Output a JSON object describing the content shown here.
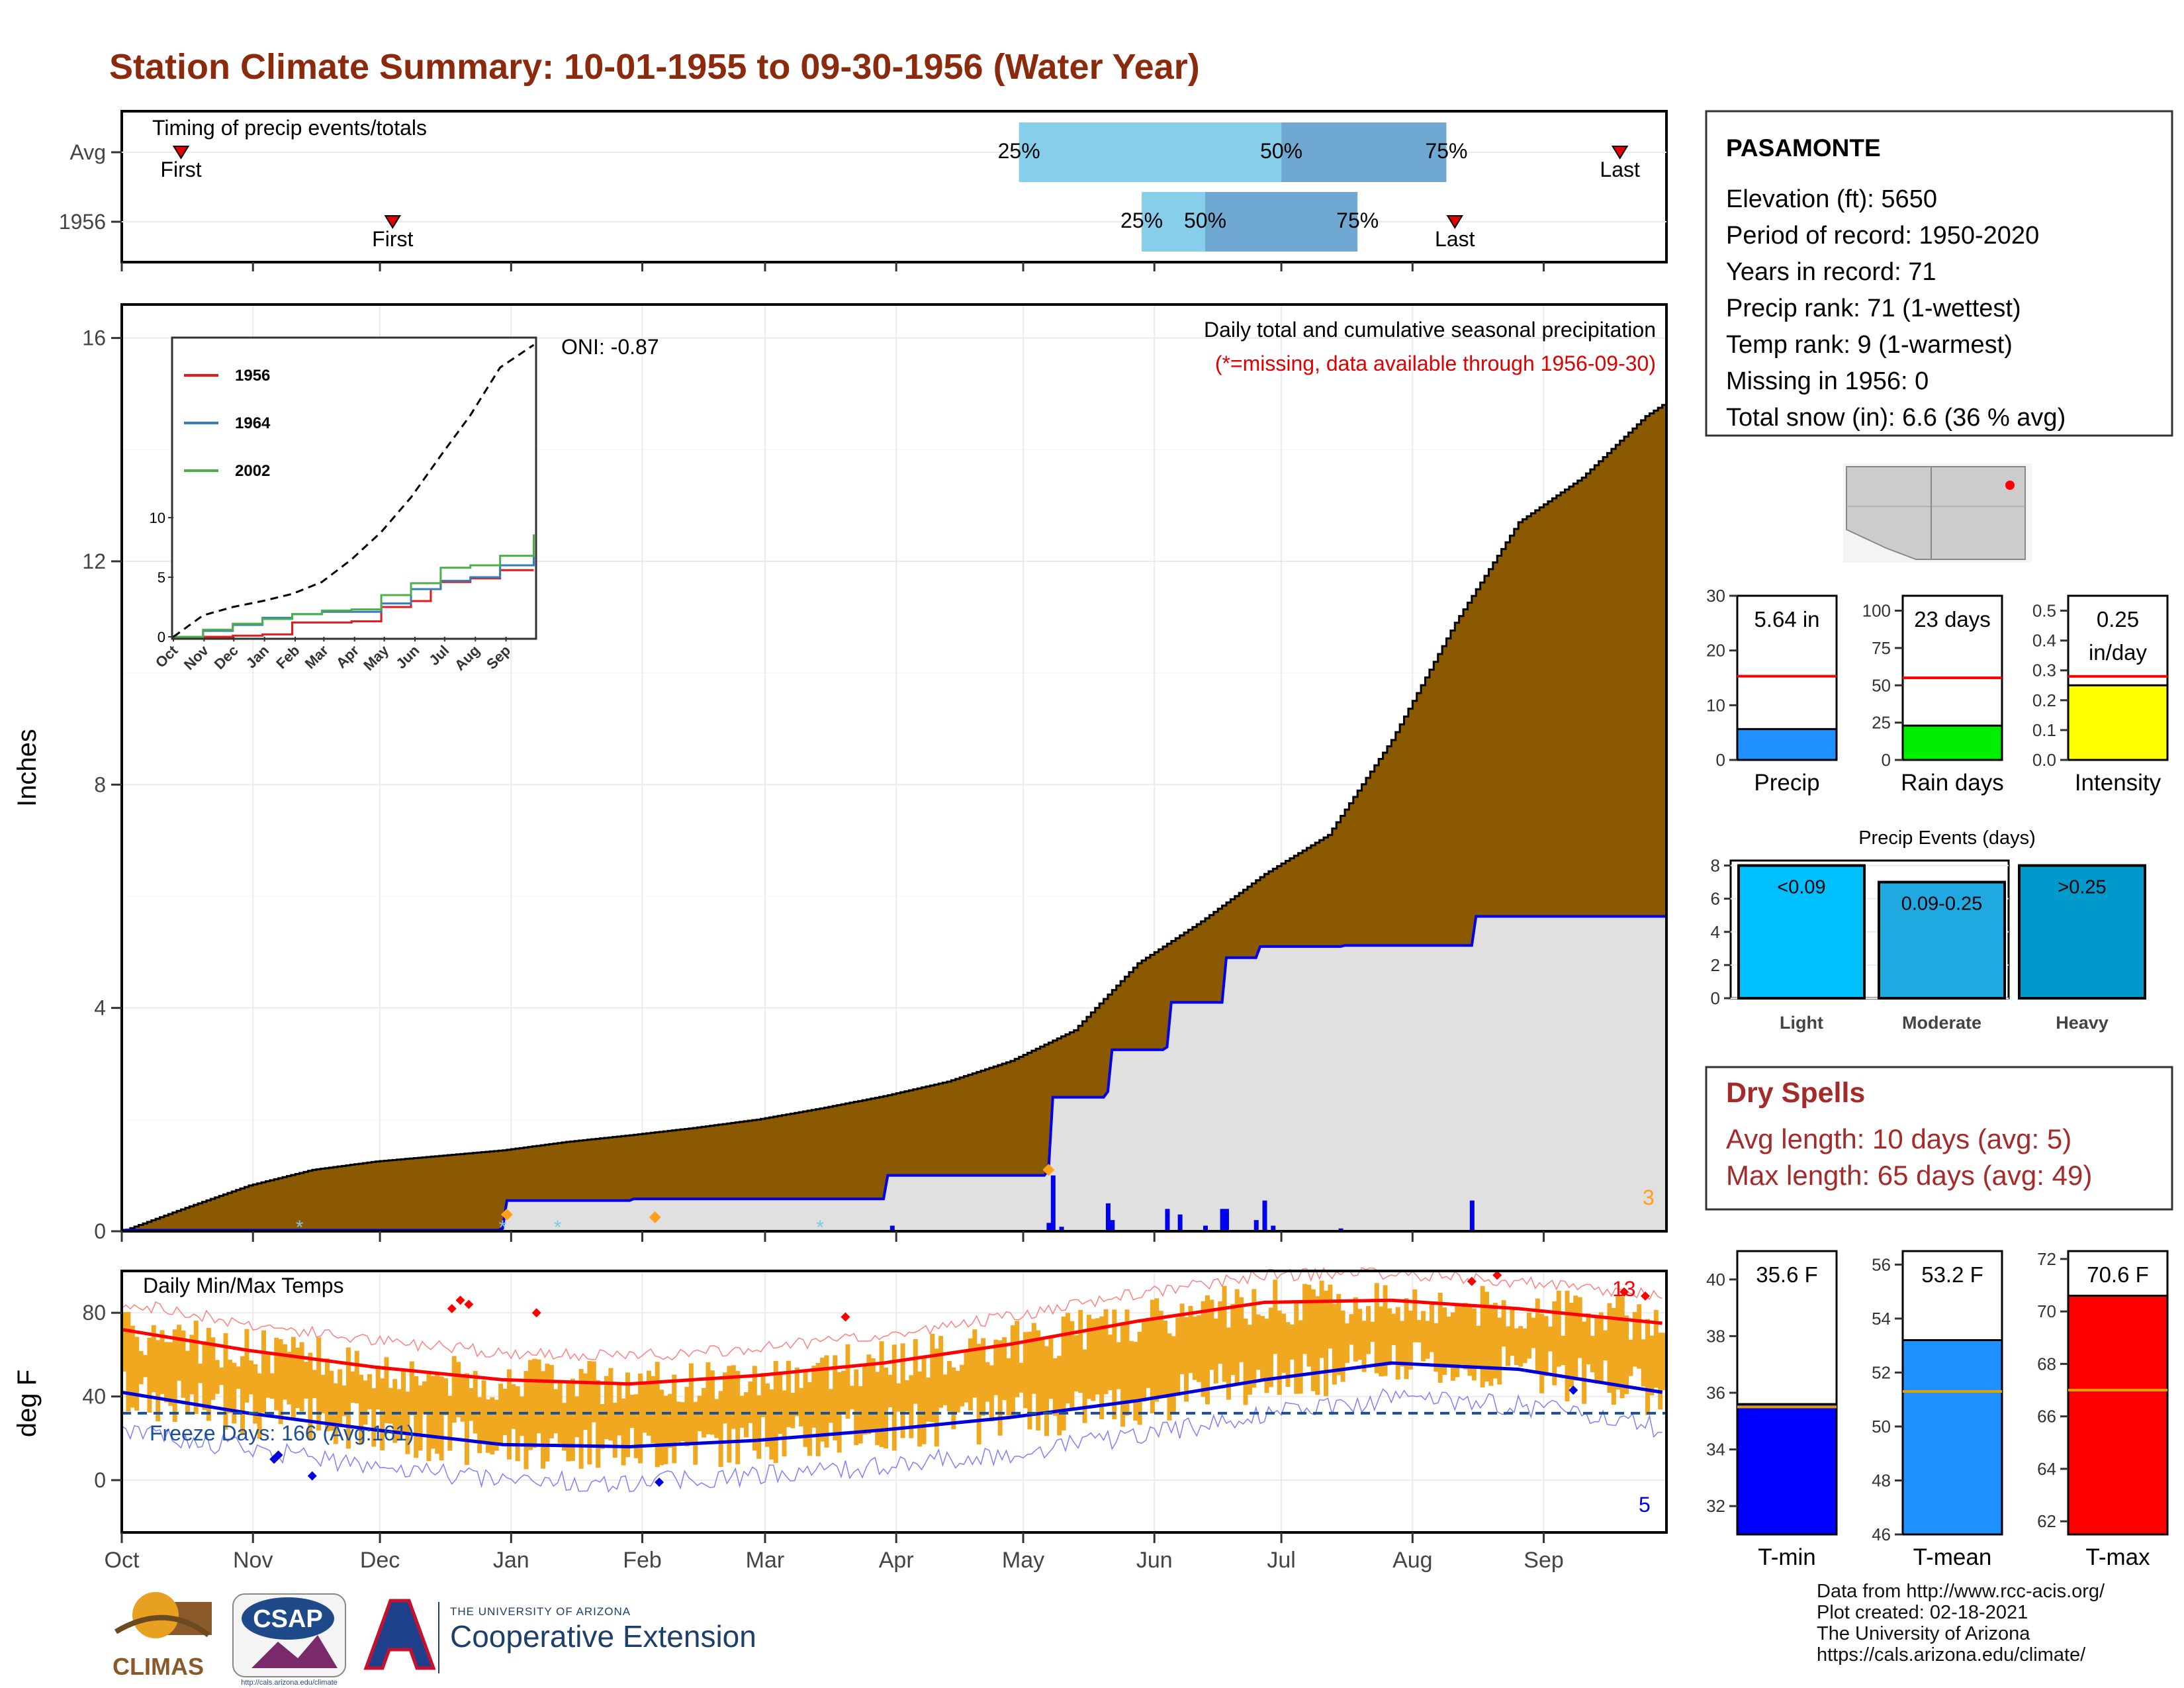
{
  "page": {
    "title": "Station Climate Summary: 10-01-1955 to 09-30-1956 (Water Year)"
  },
  "timing_panel": {
    "title": "Timing of precip events/totals",
    "rows": [
      {
        "label": "Avg",
        "first_label": "First",
        "last_label": "Last",
        "p25_label": "25%",
        "p50_label": "50%",
        "p75_label": "75%",
        "first_day": 14,
        "last_day": 354,
        "p25_day": 212,
        "p50_day": 274,
        "p75_day": 313
      },
      {
        "label": "1956",
        "first_label": "First",
        "last_label": "Last",
        "p25_label": "25%",
        "p50_label": "50%",
        "p75_label": "75%",
        "first_day": 64,
        "last_day": 315,
        "p25_day": 241,
        "p50_day": 256,
        "p75_day": 292
      }
    ],
    "colors": {
      "inner": "#87ceeb",
      "outer": "#6fa8d0",
      "marker": "#e00000"
    }
  },
  "precip_panel": {
    "title": "Daily total and cumulative seasonal precipitation",
    "subtitle": "(*=missing, data available through 1956-09-30)",
    "oni": "ONI: -0.87",
    "ylabel": "Inches",
    "yticks": [
      "0",
      "4",
      "8",
      "12",
      "16"
    ],
    "corner_count": "3",
    "colors": {
      "avg_fill": "#8b5a00",
      "year_fill": "#e0e0e0",
      "year_line": "#0000ee",
      "bars": "#0000ee",
      "count": "#ff9f1a"
    }
  },
  "inset": {
    "yticks": [
      "0",
      "5",
      "10"
    ],
    "xticks": [
      "Oct",
      "Nov",
      "Dec",
      "Jan",
      "Feb",
      "Mar",
      "Apr",
      "May",
      "Jun",
      "Jul",
      "Aug",
      "Sep"
    ],
    "legend": [
      {
        "name": "1956",
        "color": "#e41a1c"
      },
      {
        "name": "1964",
        "color": "#377eb8"
      },
      {
        "name": "2002",
        "color": "#4daf4a"
      }
    ]
  },
  "temp_panel": {
    "title": "Daily Min/Max Temps",
    "ylabel": "deg F",
    "yticks": [
      "0",
      "40",
      "80"
    ],
    "freeze_label": "Freeze Days: 166 (Avg:161)",
    "hot_count": "13",
    "cold_count": "5",
    "colors": {
      "bars": "#f0a820",
      "avg_max": "#ff0000",
      "avg_min": "#0000dd",
      "freeze_line": "#1a4f9a"
    }
  },
  "months_axis": [
    "Oct",
    "Nov",
    "Dec",
    "Jan",
    "Feb",
    "Mar",
    "Apr",
    "May",
    "Jun",
    "Jul",
    "Aug",
    "Sep"
  ],
  "station_info": {
    "name": "PASAMONTE",
    "lines": [
      "Elevation (ft): 5650",
      "Period of record: 1950-2020",
      "Years in record: 71",
      "Precip rank: 71 (1-wettest)",
      "Temp rank: 9 (1-warmest)",
      "Missing in 1956: 0",
      "Total snow (in): 6.6 (36 % avg)"
    ]
  },
  "mini_bars": [
    {
      "label": "Precip",
      "value_label": "5.64 in",
      "value": 5.64,
      "avg": 15.3,
      "ymax": 30,
      "yticks": [
        "0",
        "10",
        "20",
        "30"
      ],
      "tick_values": [
        0,
        10,
        20,
        30
      ],
      "color": "#1e90ff"
    },
    {
      "label": "Rain days",
      "value_label": "23 days",
      "value": 23,
      "avg": 55,
      "ymax": 110,
      "yticks": [
        "0",
        "25",
        "50",
        "75",
        "100"
      ],
      "tick_values": [
        0,
        25,
        50,
        75,
        100
      ],
      "color": "#00ee00"
    },
    {
      "label": "Intensity",
      "value_label": "0.25",
      "value_label2": "in/day",
      "value": 0.25,
      "avg": 0.28,
      "ymax": 0.55,
      "yticks": [
        "0.0",
        "0.1",
        "0.2",
        "0.3",
        "0.4",
        "0.5"
      ],
      "tick_values": [
        0,
        0.1,
        0.2,
        0.3,
        0.4,
        0.5
      ],
      "color": "#ffff00"
    }
  ],
  "precip_events": {
    "title": "Precip Events (days)",
    "yticks": [
      "0",
      "2",
      "4",
      "6",
      "8"
    ],
    "bars": [
      {
        "label": "Light",
        "value_label": "<0.09",
        "value": 8,
        "color": "#00bfff"
      },
      {
        "label": "Moderate",
        "value_label": "0.09-0.25",
        "value": 7,
        "color": "#1fa9e0"
      },
      {
        "label": "Heavy",
        "value_label": ">0.25",
        "value": 8,
        "color": "#0099cc"
      }
    ]
  },
  "dry_spells": {
    "title": "Dry Spells",
    "avg_length": "Avg length: 10 days (avg: 5)",
    "max_length": "Max length: 65 days (avg: 49)"
  },
  "temp_bars": [
    {
      "label": "T-min",
      "value_label": "35.6 F",
      "value": 35.6,
      "avg": 35.5,
      "ymin": 31,
      "ymax": 41,
      "yticks": [
        "32",
        "34",
        "36",
        "38",
        "40"
      ],
      "tick_values": [
        32,
        34,
        36,
        38,
        40
      ],
      "color": "#0000ff"
    },
    {
      "label": "T-mean",
      "value_label": "53.2 F",
      "value": 53.2,
      "avg": 51.3,
      "ymin": 46,
      "ymax": 56.5,
      "yticks": [
        "46",
        "48",
        "50",
        "52",
        "54",
        "56"
      ],
      "tick_values": [
        46,
        48,
        50,
        52,
        54,
        56
      ],
      "color": "#1e90ff"
    },
    {
      "label": "T-max",
      "value_label": "70.6 F",
      "value": 70.6,
      "avg": 67.0,
      "ymin": 61.5,
      "ymax": 72.3,
      "yticks": [
        "62",
        "64",
        "66",
        "68",
        "70",
        "72"
      ],
      "tick_values": [
        62,
        64,
        66,
        68,
        70,
        72
      ],
      "color": "#ff0000"
    }
  ],
  "footer": {
    "lines": [
      "Data from http://www.rcc-acis.org/",
      "Plot created: 02-18-2021",
      "The University of Arizona",
      "https://cals.arizona.edu/climate/"
    ],
    "logos": {
      "climas": "CLIMAS",
      "csap": "CSAP",
      "csap_url": "http://cals.arizona.edu/climate",
      "coop_small": "THE UNIVERSITY OF ARIZONA",
      "coop_big": "Cooperative Extension"
    }
  },
  "chart_data": {
    "type": "area",
    "title": "Daily total and cumulative seasonal precipitation",
    "ylabel": "Inches",
    "ylim": [
      0,
      16
    ],
    "x_unit": "day of water year (0 = Oct 1)",
    "series": [
      {
        "name": "Avg",
        "x": [
          0,
          15,
          30,
          45,
          60,
          75,
          90,
          105,
          120,
          135,
          150,
          165,
          180,
          195,
          210,
          225,
          240,
          255,
          270,
          285,
          300,
          315,
          330,
          345,
          360,
          364
        ],
        "values": [
          0.0,
          0.42,
          0.82,
          1.1,
          1.25,
          1.35,
          1.45,
          1.6,
          1.72,
          1.85,
          2.0,
          2.2,
          2.42,
          2.68,
          3.05,
          3.6,
          4.8,
          5.55,
          6.4,
          7.1,
          8.8,
          10.9,
          12.7,
          13.5,
          14.6,
          14.8
        ]
      },
      {
        "name": "1956",
        "x": [
          0,
          59,
          90,
          91,
          120,
          121,
          180,
          181,
          219,
          220,
          233,
          234,
          247,
          248,
          260,
          261,
          268,
          269,
          288,
          289,
          319,
          320,
          364
        ],
        "values": [
          0.02,
          0.02,
          0.05,
          0.55,
          0.55,
          0.58,
          0.58,
          1.0,
          1.1,
          2.4,
          2.5,
          3.25,
          3.3,
          4.1,
          4.1,
          4.9,
          4.9,
          5.1,
          5.1,
          5.12,
          5.12,
          5.64,
          5.64
        ]
      }
    ],
    "daily_precip": {
      "x": [
        182,
        219,
        220,
        222,
        233,
        234,
        247,
        250,
        256,
        260,
        261,
        268,
        270,
        272,
        288,
        319
      ],
      "values": [
        0.1,
        0.15,
        1.0,
        0.08,
        0.5,
        0.2,
        0.4,
        0.3,
        0.1,
        0.4,
        0.4,
        0.2,
        0.55,
        0.1,
        0.05,
        0.55
      ]
    },
    "inset_series": [
      {
        "name": "1956",
        "x": [
          0,
          60,
          90,
          120,
          180,
          210,
          240,
          260,
          270,
          300,
          330,
          364
        ],
        "values": [
          0,
          0.1,
          0.2,
          1.2,
          1.3,
          2.5,
          3.0,
          4.0,
          4.6,
          4.9,
          5.6,
          5.6
        ]
      },
      {
        "name": "1964",
        "x": [
          0,
          30,
          60,
          90,
          120,
          150,
          180,
          210,
          240,
          270,
          300,
          330,
          364
        ],
        "values": [
          0,
          0.5,
          1.0,
          1.6,
          1.9,
          2.1,
          2.1,
          2.8,
          4.0,
          4.7,
          5.0,
          6.0,
          7.6
        ]
      },
      {
        "name": "2002",
        "x": [
          0,
          30,
          60,
          90,
          120,
          150,
          180,
          210,
          240,
          270,
          300,
          330,
          364
        ],
        "values": [
          0,
          0.6,
          1.1,
          1.5,
          1.9,
          2.2,
          2.3,
          3.5,
          4.5,
          5.8,
          6.0,
          6.8,
          8.6
        ]
      },
      {
        "name": "Max",
        "x": [
          0,
          30,
          60,
          90,
          120,
          150,
          180,
          210,
          240,
          270,
          300,
          330,
          364
        ],
        "values": [
          0,
          1.8,
          2.5,
          3.0,
          3.6,
          4.6,
          6.5,
          8.8,
          11.7,
          15.2,
          18.6,
          22.6,
          24.5
        ]
      }
    ],
    "temps": {
      "ylim": [
        -25,
        100
      ],
      "avg_max": {
        "x": [
          0,
          30,
          60,
          90,
          120,
          150,
          180,
          210,
          240,
          270,
          300,
          330,
          364
        ],
        "values": [
          72,
          62,
          54,
          48,
          46,
          50,
          56,
          65,
          76,
          85,
          86,
          82,
          75
        ]
      },
      "avg_min": {
        "x": [
          0,
          30,
          60,
          90,
          120,
          150,
          180,
          210,
          240,
          270,
          300,
          330,
          364
        ],
        "values": [
          42,
          32,
          24,
          17,
          16,
          19,
          24,
          30,
          38,
          48,
          56,
          53,
          42
        ]
      },
      "freeze_threshold": 32
    }
  }
}
